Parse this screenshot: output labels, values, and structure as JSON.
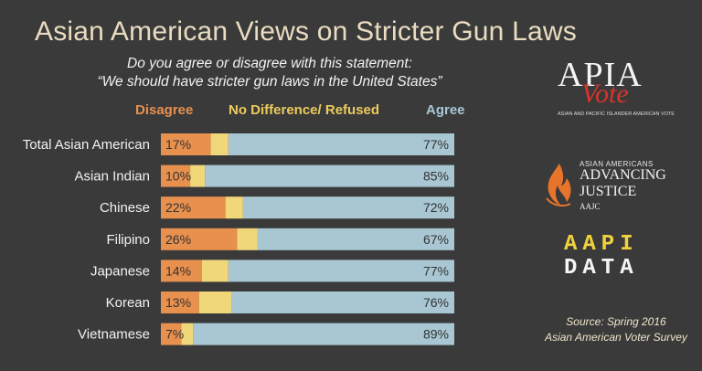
{
  "chart_data": {
    "type": "bar",
    "stacked": true,
    "orientation": "horizontal",
    "title": "Asian American Views on Stricter Gun Laws",
    "subtitle_lines": [
      "Do you agree or disagree with this statement:",
      "“We should have stricter gun laws in the United States”"
    ],
    "categories": [
      "Total Asian American",
      "Asian Indian",
      "Chinese",
      "Filipino",
      "Japanese",
      "Korean",
      "Vietnamese"
    ],
    "series": [
      {
        "name": "Disagree",
        "values": [
          17,
          10,
          22,
          26,
          14,
          13,
          7
        ],
        "color": "#e8904e"
      },
      {
        "name": "No Difference/ Refused",
        "values": [
          6,
          5,
          6,
          7,
          9,
          11,
          4
        ],
        "color": "#f0d77a"
      },
      {
        "name": "Agree",
        "values": [
          77,
          85,
          72,
          67,
          77,
          76,
          89
        ],
        "color": "#a9c7d3"
      }
    ],
    "value_suffix": "%",
    "xlim": [
      0,
      100
    ],
    "legend_position": "top"
  },
  "logos": {
    "apia": {
      "main": "APIA",
      "script": "Vote",
      "sub": "ASIAN AND PACIFIC ISLANDER AMERICAN VOTE"
    },
    "aajc": {
      "small": "ASIAN AMERICANS",
      "line1": "ADVANCING",
      "line2": "JUSTICE",
      "tag": "AAJC"
    },
    "aapi": {
      "row1": "AAPI",
      "row2": "DATA"
    }
  },
  "source": {
    "line1": "Source: Spring 2016",
    "line2": "Asian American Voter Survey"
  }
}
